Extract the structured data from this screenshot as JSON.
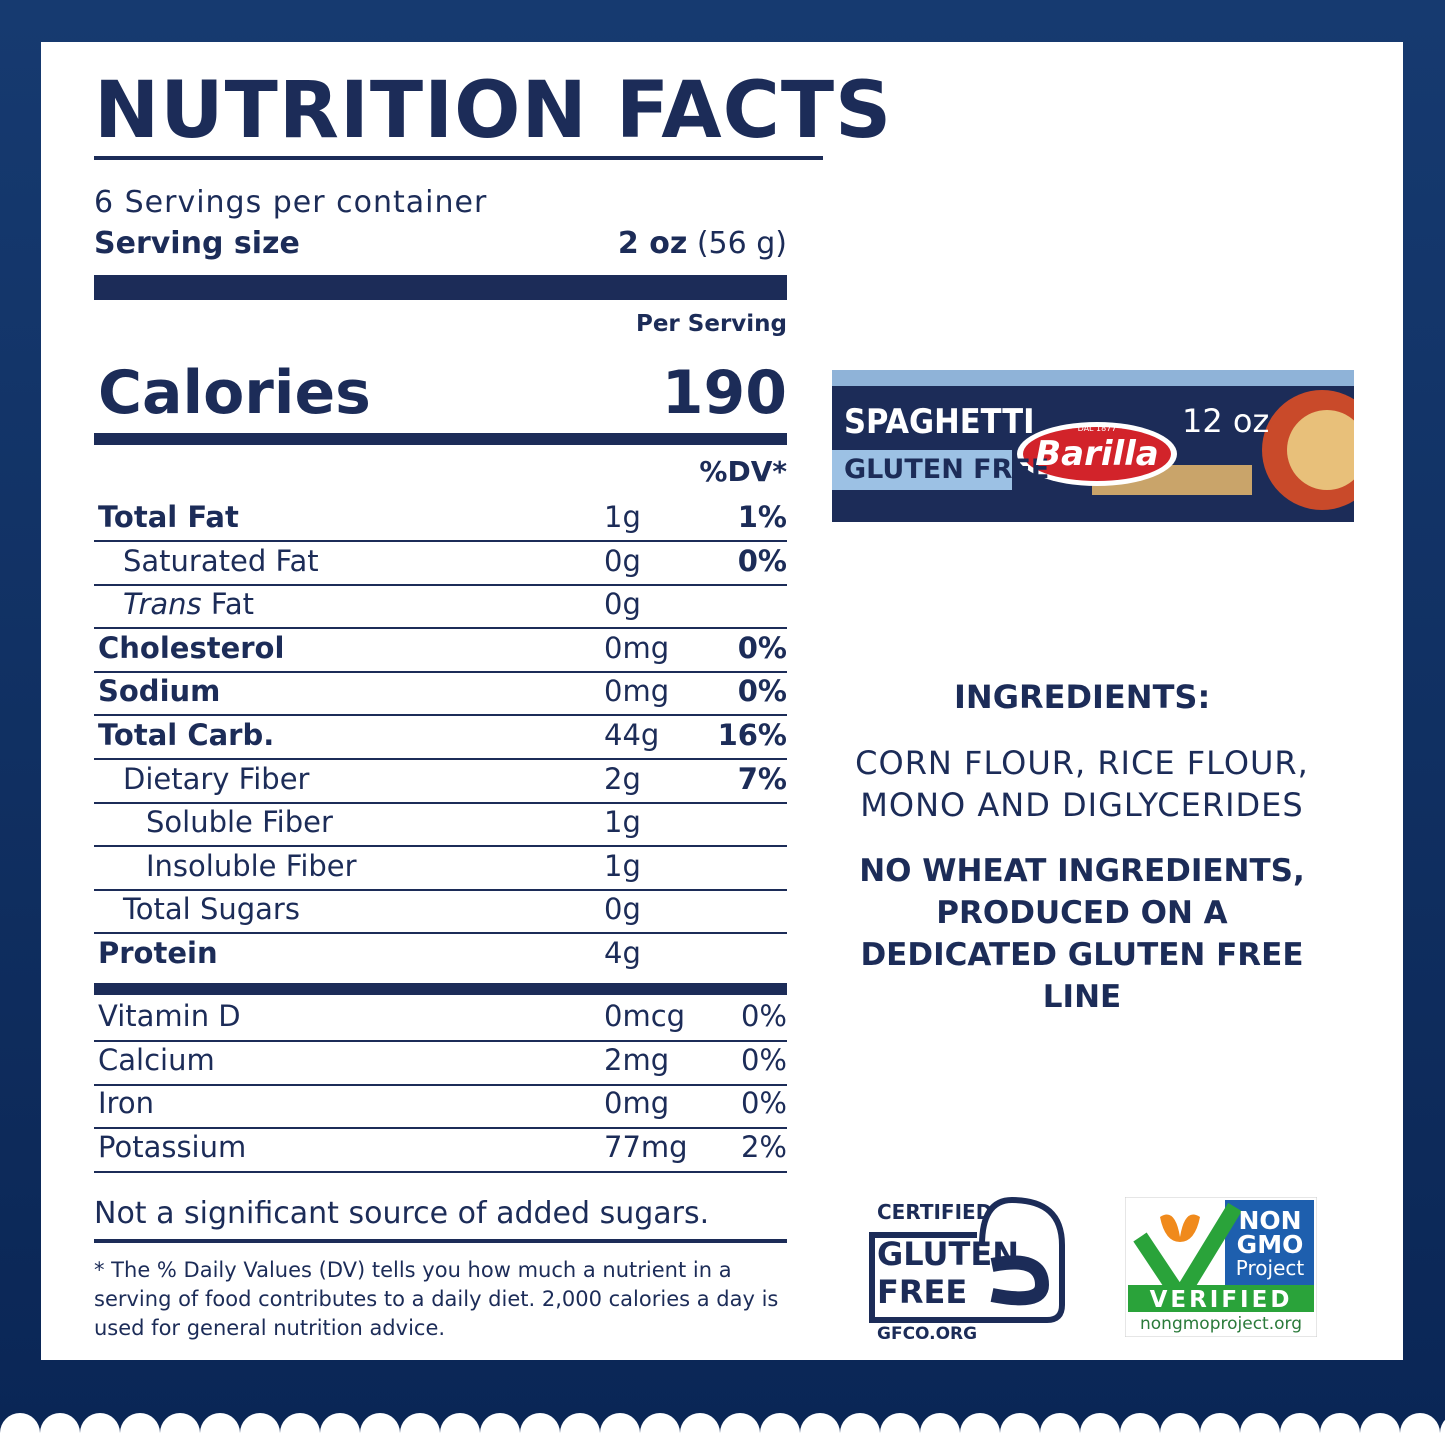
{
  "label": {
    "title": "NUTRITION FACTS",
    "servings": "6 Servings per container",
    "serving_size_label": "Serving size",
    "serving_size_amount": "2 oz",
    "serving_size_grams": "(56 g)",
    "per_serving": "Per Serving",
    "calories_label": "Calories",
    "calories": 190,
    "dv_header": "%DV*",
    "nutrients": [
      {
        "name": "Total Fat",
        "amount": "1g",
        "dv": "1%"
      },
      {
        "name": "Saturated Fat",
        "amount": "0g",
        "dv": "0%"
      },
      {
        "name_italic": "Trans",
        "name": "Fat",
        "amount": "0g"
      },
      {
        "name": "Cholesterol",
        "amount": "0mg",
        "dv": "0%"
      },
      {
        "name": "Sodium",
        "amount": "0mg",
        "dv": "0%"
      },
      {
        "name": "Total Carb.",
        "amount": "44g",
        "dv": "16%"
      },
      {
        "name": "Dietary Fiber",
        "amount": "2g",
        "dv": "7%"
      },
      {
        "name": "Soluble Fiber",
        "amount": "1g"
      },
      {
        "name": "Insoluble Fiber",
        "amount": "1g"
      },
      {
        "name": "Total Sugars",
        "amount": "0g"
      },
      {
        "name": "Protein",
        "amount": "4g"
      }
    ],
    "vitamins": [
      {
        "name": "Vitamin D",
        "amount": "0mcg",
        "dv": "0%"
      },
      {
        "name": "Calcium",
        "amount": "2mg",
        "dv": "0%"
      },
      {
        "name": "Iron",
        "amount": "0mg",
        "dv": "0%"
      },
      {
        "name": "Potassium",
        "amount": "77mg",
        "dv": "2%"
      }
    ],
    "added_sugars_note": "Not a significant source of added sugars.",
    "footnote": "* The % Daily Values (DV) tells you how much a nutrient in a serving of food contributes to a daily diet. 2,000 calories a day is used for general nutrition advice."
  },
  "package": {
    "product": "SPAGHETTI",
    "variant": "GLUTEN FREE",
    "brand": "Barilla",
    "since": "DAL 1877",
    "weight": "12 oz"
  },
  "ingredients": {
    "title": "INGREDIENTS:",
    "list": "CORN FLOUR, RICE FLOUR, MONO AND DIGLYCERIDES",
    "statement": "NO WHEAT INGREDIENTS, PRODUCED ON A DEDICATED GLUTEN FREE LINE"
  },
  "badges": {
    "gluten_free": {
      "top": "CERTIFIED",
      "line1": "GLUTEN",
      "line2": "FREE",
      "url": "GFCO.ORG"
    },
    "non_gmo": {
      "line1": "NON",
      "line2": "GMO",
      "line3": "Project",
      "verified": "VERIFIED",
      "url": "nongmoproject.org"
    }
  }
}
